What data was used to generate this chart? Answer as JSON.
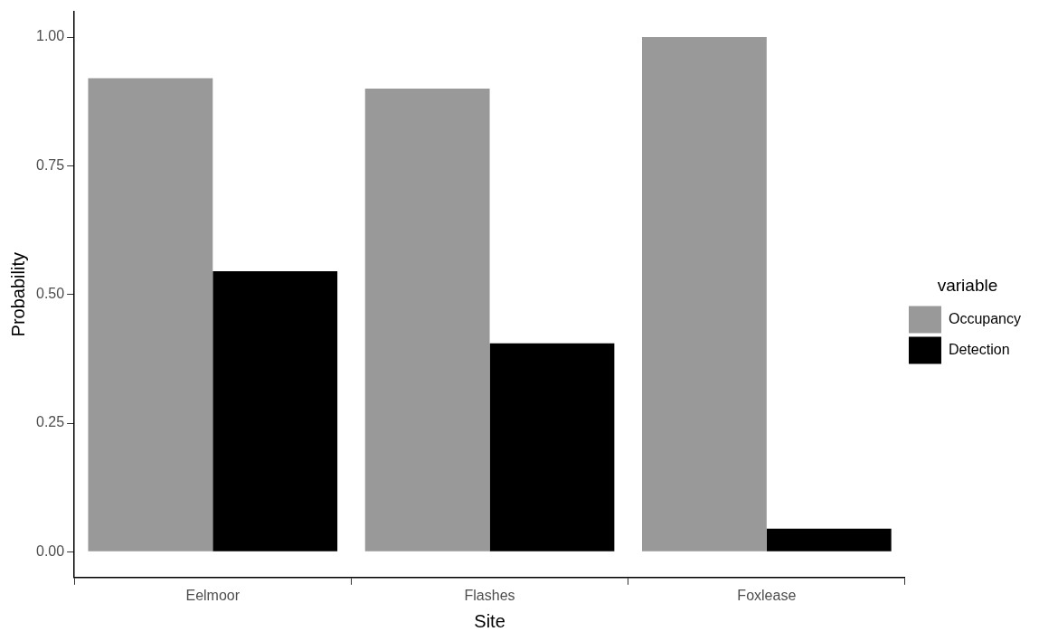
{
  "chart_data": {
    "type": "bar",
    "xlabel": "Site",
    "ylabel": "Probability",
    "legend_title": "variable",
    "categories": [
      "Eelmoor",
      "Flashes",
      "Foxlease"
    ],
    "series": [
      {
        "name": "Occupancy",
        "color": "#999999",
        "values": [
          0.92,
          0.9,
          1.0
        ]
      },
      {
        "name": "Detection",
        "color": "#000000",
        "values": [
          0.545,
          0.405,
          0.045
        ]
      }
    ],
    "ylim": [
      -0.05,
      1.05
    ],
    "yticks": [
      {
        "value": 0,
        "label": "0.00"
      },
      {
        "value": 0.25,
        "label": "0.25"
      },
      {
        "value": 0.5,
        "label": "0.50"
      },
      {
        "value": 0.75,
        "label": "0.75"
      },
      {
        "value": 1,
        "label": "1.00"
      }
    ],
    "grid": false,
    "legend": "right"
  }
}
